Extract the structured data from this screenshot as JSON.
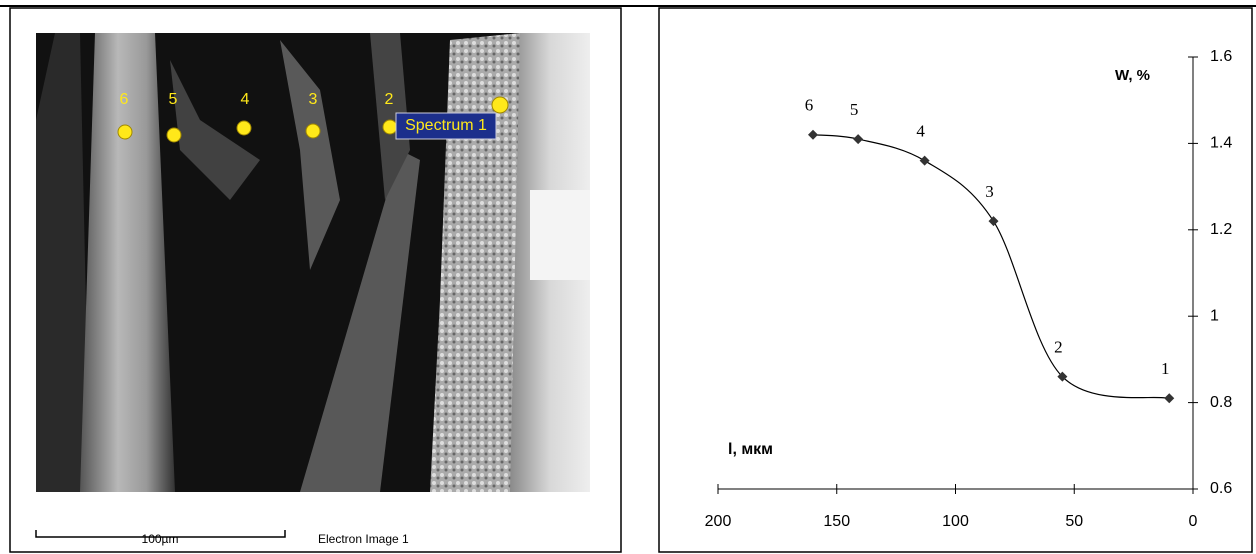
{
  "image": {
    "markers": [
      "6",
      "5",
      "4",
      "3",
      "2"
    ],
    "spectrum_label": "Spectrum 1",
    "scale_label": "100µm",
    "caption": "Electron Image 1"
  },
  "chart_data": {
    "type": "line",
    "x_label": "l, мкм",
    "y_label": "W, %",
    "series": [
      {
        "color": "#000000",
        "x": [
          160,
          141,
          113,
          84,
          55,
          10
        ],
        "values": [
          1.42,
          1.41,
          1.36,
          1.22,
          0.86,
          0.81
        ]
      }
    ],
    "point_labels": [
      "6",
      "5",
      "4",
      "3",
      "2",
      "1"
    ],
    "xlim": [
      200,
      0
    ],
    "xticks": [
      200,
      150,
      100,
      50,
      0
    ],
    "ylim": [
      0.6,
      1.6
    ],
    "yticks": [
      0.6,
      0.8,
      1,
      1.2,
      1.4,
      1.6
    ],
    "smooth": true
  }
}
